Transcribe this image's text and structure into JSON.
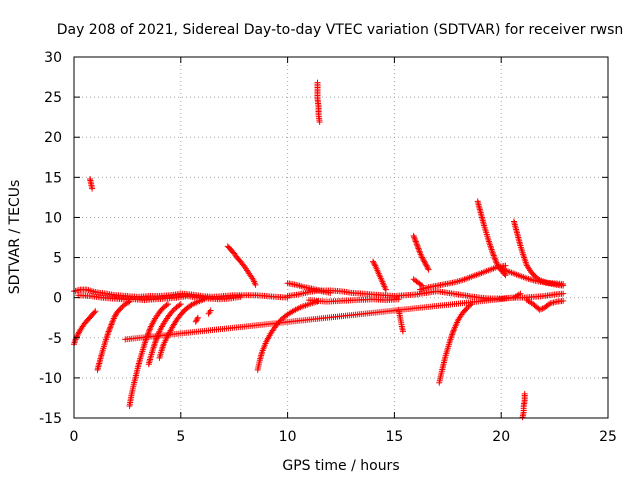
{
  "chart_data": {
    "type": "scatter",
    "title": "Day 208 of 2021, Sidereal Day-to-day VTEC variation (SDTVAR) for receiver rwsn",
    "xlabel": "GPS time / hours",
    "ylabel": "SDTVAR / TECUs",
    "xlim": [
      0,
      25
    ],
    "ylim": [
      -15,
      30
    ],
    "xticks": [
      "0",
      "5",
      "10",
      "15",
      "20",
      "25"
    ],
    "yticks": [
      "-15",
      "-10",
      "-5",
      "0",
      "5",
      "10",
      "15",
      "20",
      "25",
      "30"
    ],
    "grid": true,
    "marker": "+",
    "series_color": "#ff0000",
    "segments": [
      {
        "name": "baseline-a",
        "points": [
          [
            0.0,
            0.8
          ],
          [
            0.3,
            1.0
          ],
          [
            0.6,
            1.0
          ],
          [
            1.0,
            0.7
          ],
          [
            1.5,
            0.5
          ],
          [
            2.0,
            0.3
          ],
          [
            2.5,
            0.2
          ],
          [
            3.0,
            0.1
          ],
          [
            3.5,
            0.2
          ],
          [
            4.0,
            0.2
          ],
          [
            4.5,
            0.3
          ],
          [
            5.0,
            0.5
          ],
          [
            5.5,
            0.4
          ],
          [
            6.0,
            0.2
          ],
          [
            6.5,
            0.1
          ],
          [
            7.0,
            0.2
          ],
          [
            7.5,
            0.3
          ],
          [
            8.0,
            0.3
          ],
          [
            8.5,
            0.3
          ],
          [
            9.0,
            0.2
          ],
          [
            9.5,
            0.1
          ],
          [
            10.0,
            0.0
          ]
        ]
      },
      {
        "name": "baseline-b",
        "points": [
          [
            0.2,
            0.3
          ],
          [
            0.8,
            0.2
          ],
          [
            1.3,
            0.0
          ],
          [
            1.8,
            -0.1
          ],
          [
            2.3,
            -0.2
          ],
          [
            2.8,
            -0.2
          ],
          [
            3.3,
            -0.3
          ],
          [
            3.8,
            -0.2
          ],
          [
            4.3,
            -0.1
          ],
          [
            4.8,
            0.0
          ],
          [
            5.3,
            0.2
          ],
          [
            5.8,
            0.0
          ],
          [
            6.3,
            -0.1
          ],
          [
            6.8,
            -0.2
          ],
          [
            7.3,
            -0.1
          ],
          [
            7.8,
            0.1
          ]
        ]
      },
      {
        "name": "baseline-c",
        "points": [
          [
            10.0,
            0.2
          ],
          [
            10.5,
            0.4
          ],
          [
            11.0,
            0.7
          ],
          [
            11.5,
            0.9
          ],
          [
            12.0,
            0.9
          ],
          [
            12.5,
            0.8
          ],
          [
            13.0,
            0.6
          ],
          [
            13.5,
            0.5
          ],
          [
            14.0,
            0.4
          ],
          [
            14.5,
            0.3
          ],
          [
            15.0,
            0.2
          ],
          [
            15.5,
            0.3
          ],
          [
            16.0,
            0.4
          ],
          [
            16.5,
            0.6
          ],
          [
            17.0,
            0.8
          ],
          [
            17.5,
            0.6
          ],
          [
            18.0,
            0.4
          ],
          [
            18.5,
            0.2
          ],
          [
            19.0,
            0.0
          ],
          [
            19.5,
            -0.1
          ],
          [
            20.0,
            -0.1
          ],
          [
            20.5,
            0.0
          ],
          [
            21.0,
            0.0
          ],
          [
            21.5,
            0.1
          ],
          [
            22.0,
            0.2
          ],
          [
            22.5,
            0.4
          ],
          [
            22.9,
            0.5
          ]
        ]
      },
      {
        "name": "baseline-d",
        "points": [
          [
            11.0,
            -0.3
          ],
          [
            11.8,
            -0.5
          ],
          [
            12.5,
            -0.4
          ],
          [
            13.2,
            -0.3
          ],
          [
            14.0,
            -0.2
          ],
          [
            14.6,
            -0.3
          ],
          [
            15.2,
            -0.2
          ]
        ]
      },
      {
        "name": "hump-10",
        "points": [
          [
            10.0,
            1.8
          ],
          [
            10.4,
            1.6
          ],
          [
            10.8,
            1.3
          ],
          [
            11.2,
            1.1
          ],
          [
            11.6,
            0.8
          ],
          [
            12.0,
            0.6
          ]
        ]
      },
      {
        "name": "seg-17-20-rise",
        "points": [
          [
            16.2,
            1.0
          ],
          [
            16.6,
            1.3
          ],
          [
            17.0,
            1.5
          ],
          [
            17.4,
            1.7
          ],
          [
            17.8,
            1.9
          ],
          [
            18.2,
            2.2
          ],
          [
            18.6,
            2.6
          ],
          [
            19.0,
            3.0
          ],
          [
            19.4,
            3.4
          ],
          [
            19.8,
            3.8
          ],
          [
            20.2,
            4.0
          ]
        ]
      },
      {
        "name": "seg-20-23",
        "points": [
          [
            20.0,
            3.6
          ],
          [
            20.4,
            3.2
          ],
          [
            20.8,
            2.8
          ],
          [
            21.2,
            2.4
          ],
          [
            21.6,
            2.1
          ],
          [
            22.0,
            1.9
          ],
          [
            22.4,
            1.8
          ],
          [
            22.9,
            1.7
          ]
        ]
      },
      {
        "name": "seg-21-23-low",
        "points": [
          [
            21.2,
            -0.3
          ],
          [
            21.5,
            -0.8
          ],
          [
            21.8,
            -1.5
          ],
          [
            22.0,
            -1.3
          ],
          [
            22.3,
            -0.7
          ],
          [
            22.6,
            -0.5
          ],
          [
            22.9,
            -0.4
          ]
        ]
      },
      {
        "name": "dip-0",
        "points": [
          [
            0.0,
            -5.8
          ],
          [
            0.1,
            -5.0
          ],
          [
            0.2,
            -4.5
          ],
          [
            0.3,
            -4.0
          ],
          [
            0.4,
            -3.6
          ],
          [
            0.5,
            -3.2
          ],
          [
            0.6,
            -2.9
          ],
          [
            0.7,
            -2.6
          ],
          [
            0.8,
            -2.3
          ],
          [
            0.9,
            -2.0
          ],
          [
            1.0,
            -1.7
          ]
        ]
      },
      {
        "name": "dip-1",
        "points": [
          [
            1.1,
            -9.0
          ],
          [
            1.2,
            -8.0
          ],
          [
            1.3,
            -7.0
          ],
          [
            1.4,
            -6.1
          ],
          [
            1.5,
            -5.2
          ],
          [
            1.6,
            -4.4
          ],
          [
            1.7,
            -3.7
          ],
          [
            1.8,
            -3.0
          ],
          [
            1.9,
            -2.4
          ],
          [
            2.0,
            -1.9
          ],
          [
            2.2,
            -1.3
          ],
          [
            2.4,
            -0.8
          ],
          [
            2.6,
            -0.5
          ]
        ]
      },
      {
        "name": "dip-2",
        "points": [
          [
            2.6,
            -13.5
          ],
          [
            2.7,
            -12.0
          ],
          [
            2.8,
            -10.8
          ],
          [
            2.9,
            -9.7
          ],
          [
            3.0,
            -8.6
          ],
          [
            3.1,
            -7.6
          ],
          [
            3.2,
            -6.7
          ],
          [
            3.3,
            -5.8
          ],
          [
            3.4,
            -5.0
          ],
          [
            3.5,
            -4.3
          ],
          [
            3.6,
            -3.6
          ],
          [
            3.8,
            -2.6
          ],
          [
            4.0,
            -1.8
          ],
          [
            4.2,
            -1.2
          ],
          [
            4.4,
            -0.8
          ]
        ]
      },
      {
        "name": "dip-3",
        "points": [
          [
            3.5,
            -8.3
          ],
          [
            3.6,
            -7.3
          ],
          [
            3.7,
            -6.4
          ],
          [
            3.8,
            -5.6
          ],
          [
            3.9,
            -4.9
          ],
          [
            4.0,
            -4.2
          ],
          [
            4.2,
            -3.2
          ],
          [
            4.4,
            -2.4
          ],
          [
            4.6,
            -1.7
          ],
          [
            4.8,
            -1.2
          ],
          [
            5.0,
            -0.8
          ]
        ]
      },
      {
        "name": "dip-4",
        "points": [
          [
            4.0,
            -7.5
          ],
          [
            4.1,
            -6.6
          ],
          [
            4.2,
            -5.8
          ],
          [
            4.4,
            -4.7
          ],
          [
            4.6,
            -3.7
          ],
          [
            4.8,
            -2.8
          ],
          [
            5.0,
            -2.1
          ],
          [
            5.2,
            -1.5
          ],
          [
            5.5,
            -0.9
          ],
          [
            5.8,
            -0.5
          ],
          [
            6.1,
            -0.2
          ]
        ]
      },
      {
        "name": "dip-5",
        "points": [
          [
            5.7,
            -3.0
          ],
          [
            5.8,
            -2.5
          ]
        ]
      },
      {
        "name": "dip-6",
        "points": [
          [
            6.3,
            -2.0
          ],
          [
            6.4,
            -1.6
          ]
        ]
      },
      {
        "name": "dip-9",
        "points": [
          [
            8.6,
            -9.0
          ],
          [
            8.7,
            -7.8
          ],
          [
            8.8,
            -6.8
          ],
          [
            9.0,
            -5.5
          ],
          [
            9.2,
            -4.5
          ],
          [
            9.4,
            -3.7
          ],
          [
            9.6,
            -3.0
          ],
          [
            9.8,
            -2.5
          ],
          [
            10.0,
            -2.1
          ],
          [
            10.3,
            -1.6
          ],
          [
            10.6,
            -1.2
          ],
          [
            11.0,
            -0.8
          ],
          [
            11.4,
            -0.5
          ]
        ]
      },
      {
        "name": "dip-17",
        "points": [
          [
            17.1,
            -10.6
          ],
          [
            17.2,
            -9.4
          ],
          [
            17.3,
            -8.3
          ],
          [
            17.4,
            -7.2
          ],
          [
            17.5,
            -6.3
          ],
          [
            17.6,
            -5.4
          ],
          [
            17.7,
            -4.6
          ],
          [
            17.8,
            -3.9
          ],
          [
            17.9,
            -3.3
          ],
          [
            18.0,
            -2.7
          ],
          [
            18.2,
            -1.9
          ],
          [
            18.4,
            -1.3
          ],
          [
            18.6,
            -0.8
          ]
        ]
      },
      {
        "name": "outlier-0.7",
        "points": [
          [
            0.75,
            14.8
          ],
          [
            0.8,
            14.2
          ],
          [
            0.85,
            13.6
          ]
        ]
      },
      {
        "name": "outlier-11.4",
        "points": [
          [
            11.4,
            26.8
          ],
          [
            11.4,
            25.8
          ],
          [
            11.4,
            24.8
          ],
          [
            11.45,
            23.8
          ],
          [
            11.45,
            22.8
          ],
          [
            11.5,
            21.9
          ]
        ]
      },
      {
        "name": "seg-7-8",
        "points": [
          [
            7.2,
            6.4
          ],
          [
            7.3,
            6.1
          ],
          [
            7.4,
            5.8
          ],
          [
            7.5,
            5.5
          ],
          [
            7.6,
            5.1
          ],
          [
            7.8,
            4.5
          ],
          [
            8.0,
            3.8
          ],
          [
            8.2,
            3.0
          ],
          [
            8.4,
            2.2
          ],
          [
            8.5,
            1.6
          ]
        ]
      },
      {
        "name": "seg-14",
        "points": [
          [
            14.0,
            4.5
          ],
          [
            14.1,
            4.0
          ],
          [
            14.2,
            3.4
          ],
          [
            14.3,
            2.8
          ],
          [
            14.4,
            2.2
          ],
          [
            14.5,
            1.6
          ],
          [
            14.6,
            1.0
          ]
        ]
      },
      {
        "name": "spike-15",
        "points": [
          [
            15.2,
            -1.5
          ],
          [
            15.25,
            -2.2
          ],
          [
            15.3,
            -2.9
          ],
          [
            15.35,
            -3.6
          ],
          [
            15.4,
            -4.2
          ]
        ]
      },
      {
        "name": "seg-16",
        "points": [
          [
            15.9,
            7.7
          ],
          [
            16.0,
            7.0
          ],
          [
            16.1,
            6.3
          ],
          [
            16.2,
            5.6
          ],
          [
            16.3,
            5.0
          ],
          [
            16.4,
            4.5
          ],
          [
            16.5,
            4.0
          ],
          [
            16.6,
            3.5
          ]
        ]
      },
      {
        "name": "seg-16-mid",
        "points": [
          [
            15.9,
            2.3
          ],
          [
            16.1,
            1.9
          ],
          [
            16.3,
            1.5
          ]
        ]
      },
      {
        "name": "seg-19",
        "points": [
          [
            18.9,
            12.0
          ],
          [
            19.0,
            11.0
          ],
          [
            19.1,
            10.0
          ],
          [
            19.2,
            9.0
          ],
          [
            19.3,
            8.1
          ],
          [
            19.4,
            7.2
          ],
          [
            19.5,
            6.4
          ],
          [
            19.6,
            5.6
          ],
          [
            19.7,
            4.9
          ],
          [
            19.8,
            4.2
          ],
          [
            20.0,
            3.4
          ],
          [
            20.2,
            2.8
          ]
        ]
      },
      {
        "name": "seg-20.6",
        "points": [
          [
            20.6,
            9.5
          ],
          [
            20.7,
            8.5
          ],
          [
            20.8,
            7.5
          ],
          [
            20.9,
            6.5
          ],
          [
            21.0,
            5.6
          ],
          [
            21.1,
            4.8
          ],
          [
            21.2,
            4.0
          ],
          [
            21.4,
            3.2
          ],
          [
            21.6,
            2.6
          ],
          [
            21.8,
            2.2
          ],
          [
            22.2,
            1.8
          ],
          [
            22.6,
            1.6
          ],
          [
            22.9,
            1.5
          ]
        ]
      },
      {
        "name": "outlier-21",
        "points": [
          [
            21.1,
            -12.0
          ],
          [
            21.1,
            -12.8
          ],
          [
            21.05,
            -13.6
          ],
          [
            21.05,
            -14.3
          ],
          [
            21.0,
            -14.9
          ]
        ]
      },
      {
        "name": "isolated",
        "points": [
          [
            2.4,
            -5.2
          ],
          [
            20.6,
            0.0
          ],
          [
            20.9,
            0.5
          ]
        ]
      }
    ]
  }
}
